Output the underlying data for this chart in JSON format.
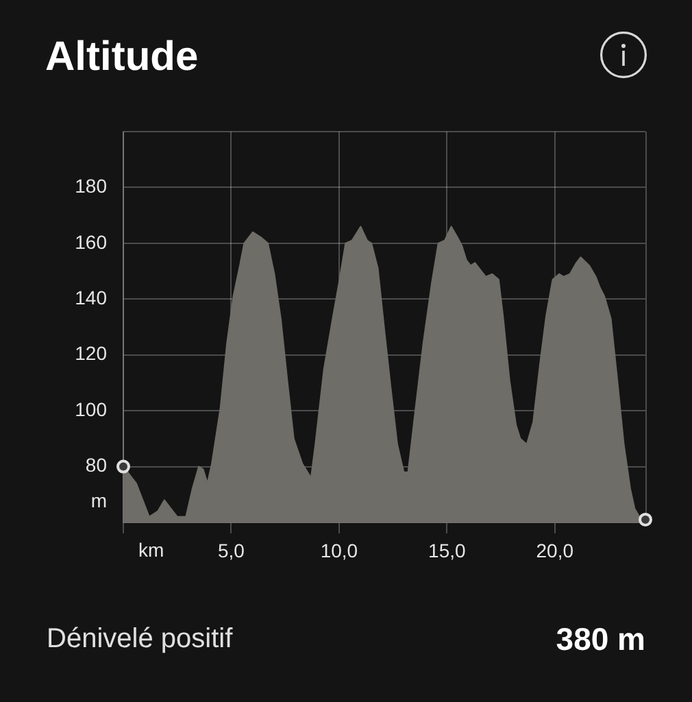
{
  "chart_data": {
    "type": "area",
    "title": "Altitude",
    "xlabel": "km",
    "ylabel": "m",
    "annotations": [
      "Dénivelé positif",
      "380 m"
    ],
    "xlim": [
      0,
      24.2
    ],
    "ylim": [
      60,
      200
    ],
    "xticks": [
      {
        "value": 0,
        "label": null
      },
      {
        "value": 5,
        "label": "5,0"
      },
      {
        "value": 10,
        "label": "10,0"
      },
      {
        "value": 15,
        "label": "15,0"
      },
      {
        "value": 20,
        "label": "20,0"
      }
    ],
    "yticks": [
      {
        "value": 60,
        "label": null
      },
      80,
      100,
      120,
      140,
      160,
      180,
      {
        "value": 200,
        "label": null
      }
    ],
    "grid": true,
    "legend": false,
    "series": [
      {
        "color": "#6f6d68",
        "x": [
          0,
          0.3,
          0.6,
          1.0,
          1.2,
          1.6,
          1.9,
          2.2,
          2.5,
          2.9,
          3.2,
          3.5,
          3.7,
          3.9,
          4.1,
          4.5,
          4.8,
          5.1,
          5.4,
          5.6,
          6.0,
          6.4,
          6.7,
          7.0,
          7.3,
          7.6,
          7.9,
          8.3,
          8.7,
          8.9,
          9.3,
          9.7,
          10.0,
          10.3,
          10.6,
          11.0,
          11.3,
          11.5,
          11.8,
          12.1,
          12.4,
          12.7,
          13.0,
          13.2,
          13.5,
          13.9,
          14.3,
          14.6,
          14.9,
          15.2,
          15.5,
          15.7,
          15.9,
          16.1,
          16.3,
          16.6,
          16.8,
          17.1,
          17.4,
          17.6,
          17.9,
          18.2,
          18.4,
          18.7,
          19.0,
          19.3,
          19.6,
          19.9,
          20.2,
          20.4,
          20.7,
          21.0,
          21.2,
          21.6,
          21.9,
          22.1,
          22.3,
          22.6,
          22.9,
          23.2,
          23.5,
          23.7,
          24.0,
          24.2
        ],
        "values": [
          80,
          77,
          74,
          66,
          62,
          64,
          68,
          65,
          62,
          62,
          72,
          80,
          79,
          74,
          81,
          101,
          124,
          141,
          152,
          160,
          164,
          162,
          160,
          149,
          133,
          111,
          90,
          81,
          76,
          88,
          115,
          133,
          146,
          160,
          161,
          166,
          161,
          160,
          151,
          129,
          108,
          88,
          78,
          78,
          98,
          124,
          146,
          160,
          161,
          166,
          162,
          159,
          154,
          152,
          153,
          150,
          148,
          149,
          147,
          134,
          111,
          95,
          90,
          88,
          96,
          116,
          134,
          147,
          149,
          148,
          149,
          153,
          155,
          152,
          148,
          144,
          141,
          133,
          111,
          88,
          72,
          65,
          61,
          61
        ]
      },
      {
        "type": "scatter",
        "color": "#e0e0e0",
        "marker": "circle",
        "x": [
          0,
          24.2
        ],
        "values": [
          80,
          61
        ]
      }
    ]
  }
}
